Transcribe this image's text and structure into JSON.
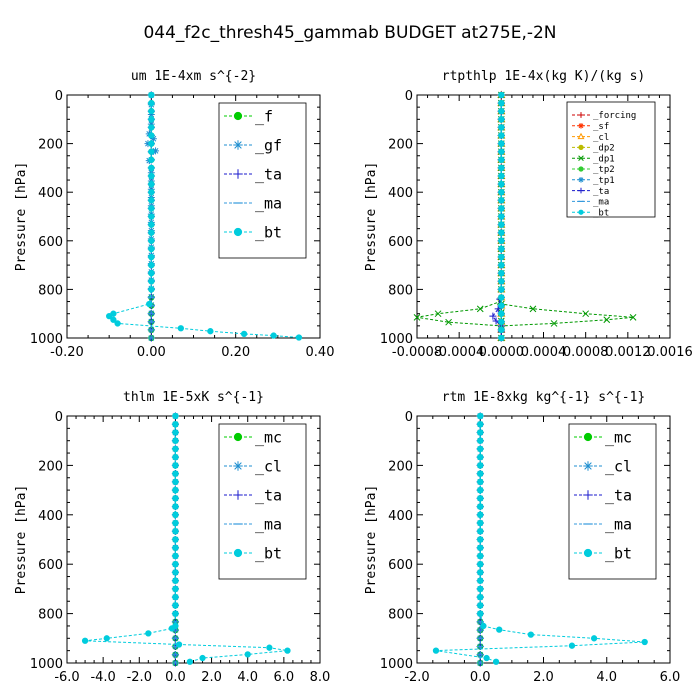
{
  "figure": {
    "title": "044_f2c_thresh45_gammab  BUDGET at275E,-2N"
  },
  "chart_data": [
    {
      "type": "line",
      "title": "um   1E-4xm s^{-2}",
      "ylabel": "Pressure [hPa]",
      "xlabel": "",
      "xlim": [
        -0.2,
        0.4
      ],
      "ylim": [
        1000,
        0
      ],
      "xticks": [
        "-0.20",
        "0.00",
        "0.20",
        "0.40"
      ],
      "yticks": [
        "0",
        "200",
        "400",
        "600",
        "800",
        "1000"
      ],
      "grid": false,
      "legend_position": "top-right",
      "series": [
        {
          "name": "_f",
          "color": "#00cc00",
          "marker": "o",
          "x": [
            0,
            0,
            0,
            0,
            0,
            0,
            0,
            0,
            0,
            0,
            0
          ],
          "y": [
            0,
            100,
            200,
            300,
            400,
            500,
            600,
            700,
            800,
            900,
            1000
          ]
        },
        {
          "name": "_gf",
          "color": "#1f8fd0",
          "marker": "*",
          "x": [
            0,
            0,
            -0.005,
            0.005,
            -0.008,
            0.01,
            -0.005,
            0,
            0
          ],
          "y": [
            0,
            120,
            160,
            180,
            200,
            230,
            270,
            320,
            1000
          ]
        },
        {
          "name": "_ta",
          "color": "#1a1acc",
          "marker": "+",
          "x": [
            0,
            0,
            0,
            0,
            0,
            0
          ],
          "y": [
            0,
            200,
            400,
            600,
            800,
            1000
          ]
        },
        {
          "name": "_ma",
          "color": "#3399dd",
          "marker": "-",
          "x": [
            0,
            0,
            0,
            0,
            0,
            0
          ],
          "y": [
            0,
            200,
            400,
            600,
            800,
            1000
          ]
        },
        {
          "name": "_bt",
          "color": "#00ccdd",
          "marker": "o",
          "x": [
            0,
            0,
            0,
            0,
            0,
            -0.005,
            -0.09,
            -0.1,
            -0.09,
            -0.08,
            0.07,
            0.14,
            0.22,
            0.29,
            0.35
          ],
          "y": [
            0,
            200,
            400,
            600,
            800,
            860,
            900,
            910,
            925,
            940,
            960,
            972,
            983,
            990,
            998
          ]
        }
      ]
    },
    {
      "type": "line",
      "title": "rtpthlp   1E-4x(kg K)/(kg s)",
      "ylabel": "Pressure [hPa]",
      "xlabel": "",
      "xlim": [
        -0.0008,
        0.0016
      ],
      "ylim": [
        1000,
        0
      ],
      "xticks": [
        "-0.0008",
        "-0.0004",
        "0.0000",
        "0.0004",
        "0.0008",
        "0.0012",
        "0.0016"
      ],
      "yticks": [
        "0",
        "200",
        "400",
        "600",
        "800",
        "1000"
      ],
      "grid": false,
      "legend_position": "top-right",
      "series": [
        {
          "name": "_forcing",
          "color": "#cc0000",
          "marker": "+",
          "x": [
            0,
            0,
            0,
            0,
            0,
            0
          ],
          "y": [
            0,
            200,
            400,
            600,
            800,
            1000
          ]
        },
        {
          "name": "_sf",
          "color": "#ff3300",
          "marker": "*",
          "x": [
            0,
            0,
            0,
            0,
            0,
            0
          ],
          "y": [
            0,
            200,
            400,
            600,
            800,
            1000
          ]
        },
        {
          "name": "_cl",
          "color": "#ff9900",
          "marker": "^",
          "x": [
            0,
            0,
            0,
            0,
            0,
            0
          ],
          "y": [
            0,
            200,
            400,
            600,
            800,
            1000
          ]
        },
        {
          "name": "_dp2",
          "color": "#bbbb00",
          "marker": "o",
          "x": [
            0,
            0,
            0,
            0,
            0,
            0
          ],
          "y": [
            0,
            200,
            400,
            600,
            800,
            1000
          ]
        },
        {
          "name": "_dp1",
          "color": "#009900",
          "marker": "x",
          "x": [
            0,
            0,
            0,
            -1e-05,
            -0.0002,
            -0.0006,
            -0.0008,
            -0.0005,
            0,
            0.0005,
            0.001,
            0.00125,
            0.0008,
            0.0003,
            0,
            0
          ],
          "y": [
            0,
            400,
            800,
            850,
            880,
            900,
            915,
            935,
            950,
            940,
            925,
            915,
            900,
            880,
            860,
            1000
          ]
        },
        {
          "name": "_tp2",
          "color": "#33cc33",
          "marker": "o",
          "x": [
            0,
            0,
            0,
            0,
            0,
            0
          ],
          "y": [
            0,
            200,
            400,
            600,
            800,
            1000
          ]
        },
        {
          "name": "_tp1",
          "color": "#1f8fd0",
          "marker": "*",
          "x": [
            0,
            0,
            0,
            0,
            0,
            0
          ],
          "y": [
            0,
            200,
            400,
            600,
            800,
            1000
          ]
        },
        {
          "name": "_ta",
          "color": "#1a1acc",
          "marker": "+",
          "x": [
            0,
            0,
            0,
            -3e-05,
            -8e-05,
            -5e-05,
            0,
            0,
            0
          ],
          "y": [
            0,
            400,
            800,
            880,
            910,
            930,
            950,
            975,
            1000
          ]
        },
        {
          "name": "_ma",
          "color": "#3399dd",
          "marker": "-",
          "x": [
            0,
            0,
            0,
            0,
            0,
            0
          ],
          "y": [
            0,
            200,
            400,
            600,
            800,
            1000
          ]
        },
        {
          "name": "_bt",
          "color": "#00ccdd",
          "marker": "o",
          "x": [
            0,
            0,
            0,
            0,
            0,
            0
          ],
          "y": [
            0,
            200,
            400,
            600,
            800,
            1000
          ]
        }
      ]
    },
    {
      "type": "line",
      "title": "thlm   1E-5xK  s^{-1}",
      "ylabel": "Pressure [hPa]",
      "xlabel": "",
      "xlim": [
        -6.0,
        8.0
      ],
      "ylim": [
        1000,
        0
      ],
      "xticks": [
        "-6.0",
        "-4.0",
        "-2.0",
        "0.0",
        "2.0",
        "4.0",
        "6.0",
        "8.0"
      ],
      "yticks": [
        "0",
        "200",
        "400",
        "600",
        "800",
        "1000"
      ],
      "grid": false,
      "legend_position": "top-right",
      "series": [
        {
          "name": "_mc",
          "color": "#00cc00",
          "marker": "o",
          "x": [
            0,
            0,
            0,
            0,
            0,
            0,
            0,
            0,
            0,
            0,
            0
          ],
          "y": [
            0,
            100,
            200,
            300,
            400,
            500,
            600,
            700,
            800,
            900,
            1000
          ]
        },
        {
          "name": "_cl",
          "color": "#1f8fd0",
          "marker": "*",
          "x": [
            0,
            0,
            0,
            0,
            0,
            0
          ],
          "y": [
            0,
            200,
            400,
            600,
            800,
            1000
          ]
        },
        {
          "name": "_ta",
          "color": "#1a1acc",
          "marker": "+",
          "x": [
            0,
            0,
            0,
            0,
            0,
            0
          ],
          "y": [
            0,
            200,
            400,
            600,
            800,
            1000
          ]
        },
        {
          "name": "_ma",
          "color": "#3399dd",
          "marker": "-",
          "x": [
            0,
            0,
            0,
            0,
            0,
            0
          ],
          "y": [
            0,
            200,
            400,
            600,
            800,
            1000
          ]
        },
        {
          "name": "_bt",
          "color": "#00ccdd",
          "marker": "o",
          "x": [
            0,
            0,
            0,
            0,
            0,
            0,
            -0.2,
            -1.5,
            -3.8,
            -5.0,
            0.2,
            5.2,
            6.2,
            4.0,
            1.5,
            0.8
          ],
          "y": [
            0,
            200,
            400,
            600,
            800,
            850,
            860,
            880,
            900,
            910,
            925,
            938,
            950,
            965,
            980,
            995
          ]
        }
      ]
    },
    {
      "type": "line",
      "title": "rtm   1E-8xkg  kg^{-1} s^{-1}",
      "ylabel": "Pressure [hPa]",
      "xlabel": "",
      "xlim": [
        -2.0,
        6.0
      ],
      "ylim": [
        1000,
        0
      ],
      "xticks": [
        "-2.0",
        "0.0",
        "2.0",
        "4.0",
        "6.0"
      ],
      "yticks": [
        "0",
        "200",
        "400",
        "600",
        "800",
        "1000"
      ],
      "grid": false,
      "legend_position": "top-right",
      "series": [
        {
          "name": "_mc",
          "color": "#00cc00",
          "marker": "o",
          "x": [
            0,
            0,
            0,
            0,
            0,
            0,
            0,
            0,
            0,
            0,
            0
          ],
          "y": [
            0,
            100,
            200,
            300,
            400,
            500,
            600,
            700,
            800,
            900,
            1000
          ]
        },
        {
          "name": "_cl",
          "color": "#1f8fd0",
          "marker": "*",
          "x": [
            0,
            0,
            0,
            0,
            0,
            0
          ],
          "y": [
            0,
            200,
            400,
            600,
            800,
            1000
          ]
        },
        {
          "name": "_ta",
          "color": "#1a1acc",
          "marker": "+",
          "x": [
            0,
            0,
            0,
            0,
            0,
            0
          ],
          "y": [
            0,
            200,
            400,
            600,
            800,
            1000
          ]
        },
        {
          "name": "_ma",
          "color": "#3399dd",
          "marker": "-",
          "x": [
            0,
            0,
            0,
            0,
            0,
            0
          ],
          "y": [
            0,
            200,
            400,
            600,
            800,
            1000
          ]
        },
        {
          "name": "_bt",
          "color": "#00ccdd",
          "marker": "o",
          "x": [
            0,
            0,
            0,
            0,
            0,
            0.1,
            0.6,
            1.6,
            3.6,
            5.2,
            2.9,
            -1.4,
            0.2,
            0.5
          ],
          "y": [
            0,
            200,
            400,
            600,
            800,
            850,
            865,
            885,
            900,
            915,
            930,
            950,
            980,
            995
          ]
        }
      ]
    }
  ]
}
